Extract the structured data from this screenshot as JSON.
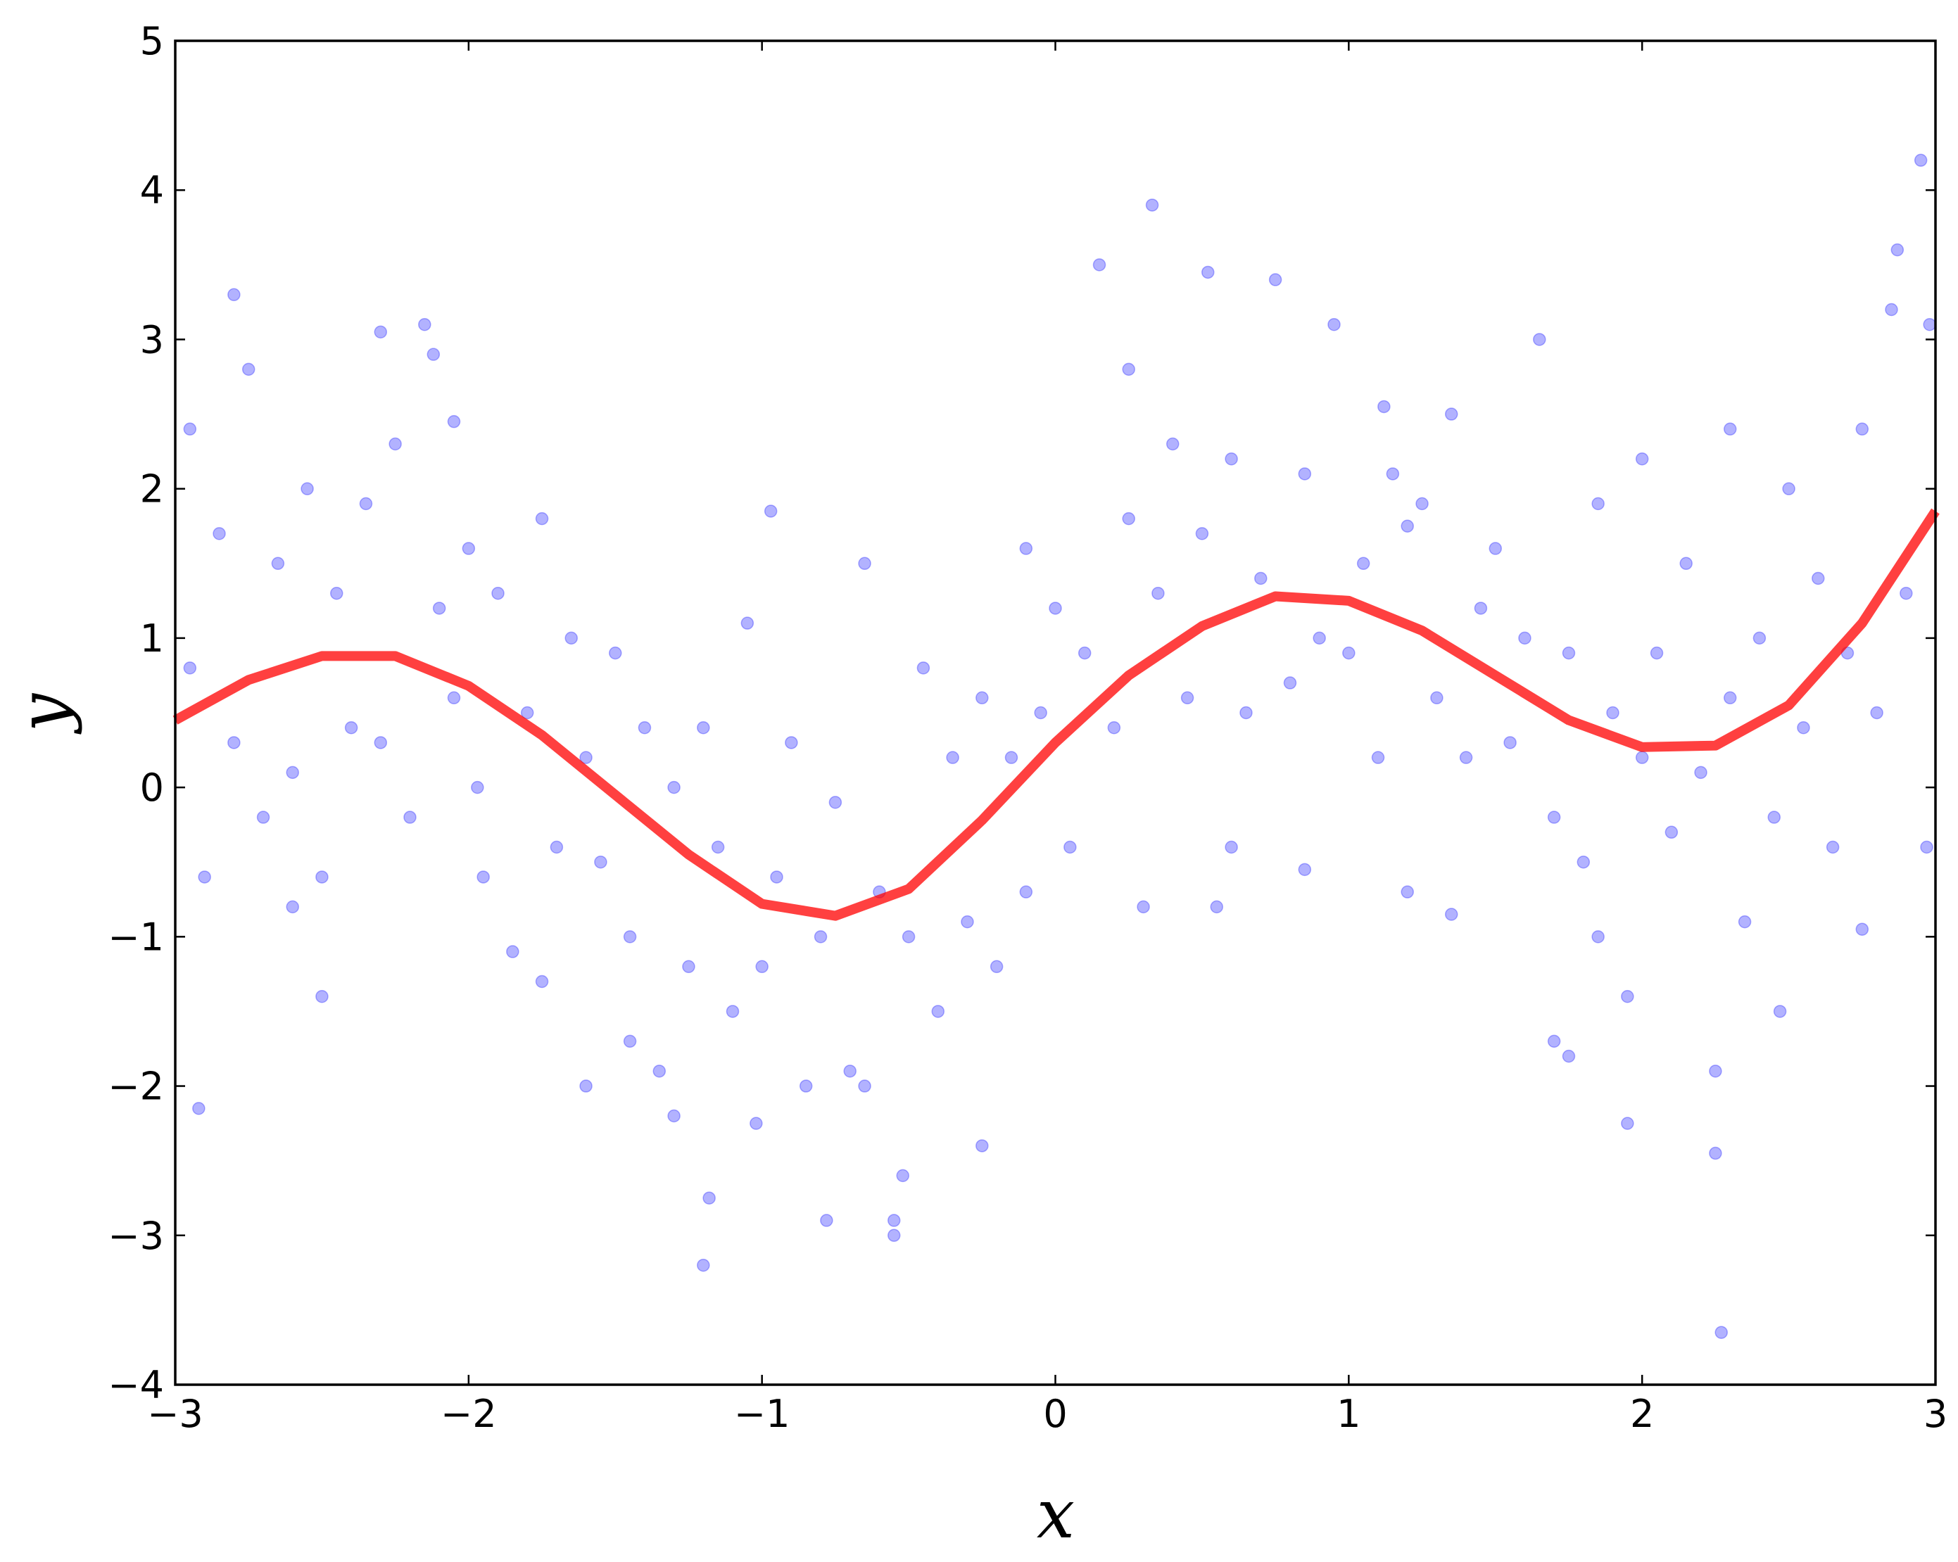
{
  "chart_data": {
    "type": "scatter",
    "xlabel": "x",
    "ylabel": "y",
    "xlim": [
      -3,
      3
    ],
    "ylim": [
      -4,
      5
    ],
    "xticks": [
      {
        "value": -3,
        "label": "−3"
      },
      {
        "value": -2,
        "label": "−2"
      },
      {
        "value": -1,
        "label": "−1"
      },
      0,
      1,
      2,
      3
    ],
    "yticks": [
      {
        "value": -4,
        "label": "−4"
      },
      {
        "value": -3,
        "label": "−3"
      },
      {
        "value": -2,
        "label": "−2"
      },
      {
        "value": -1,
        "label": "−1"
      },
      0,
      1,
      2,
      3,
      4,
      5
    ],
    "series": [
      {
        "type": "scatter",
        "color": "#0000ff",
        "x": [
          -2.95,
          -2.9,
          -2.85,
          -2.8,
          -2.75,
          -2.7,
          -2.65,
          -2.6,
          -2.55,
          -2.5,
          -2.45,
          -2.4,
          -2.35,
          -2.3,
          -2.25,
          -2.2,
          -2.15,
          -2.1,
          -2.05,
          -2.0,
          -1.95,
          -1.9,
          -1.85,
          -1.8,
          -1.75,
          -1.7,
          -1.65,
          -1.6,
          -1.55,
          -1.5,
          -1.45,
          -1.4,
          -1.35,
          -1.3,
          -1.25,
          -1.2,
          -1.15,
          -1.1,
          -1.05,
          -1.0,
          -0.95,
          -0.9,
          -0.85,
          -0.8,
          -0.75,
          -0.7,
          -0.65,
          -0.6,
          -0.55,
          -0.5,
          -0.45,
          -0.4,
          -0.35,
          -0.3,
          -0.25,
          -0.2,
          -0.15,
          -0.1,
          -0.05,
          0.0,
          0.05,
          0.1,
          0.15,
          0.2,
          0.25,
          0.3,
          0.35,
          0.4,
          0.45,
          0.5,
          0.55,
          0.6,
          0.65,
          0.7,
          0.75,
          0.8,
          0.85,
          0.9,
          0.95,
          1.0,
          1.05,
          1.1,
          1.15,
          1.2,
          1.25,
          1.3,
          1.35,
          1.4,
          1.45,
          1.5,
          1.55,
          1.6,
          1.65,
          1.7,
          1.75,
          1.8,
          1.85,
          1.9,
          1.95,
          2.0,
          2.05,
          2.1,
          2.15,
          2.2,
          2.25,
          2.3,
          2.35,
          2.4,
          2.45,
          2.5,
          2.55,
          2.6,
          2.65,
          2.7,
          2.75,
          2.8,
          2.85,
          2.9,
          2.95,
          -2.95,
          -2.92,
          -2.8,
          -2.6,
          -2.5,
          -2.3,
          -2.12,
          -2.05,
          -1.97,
          -1.75,
          -1.6,
          -1.45,
          -1.3,
          -1.2,
          -1.18,
          -1.02,
          -0.97,
          -0.78,
          -0.65,
          -0.55,
          -0.52,
          -0.25,
          -0.1,
          0.25,
          0.33,
          0.52,
          0.6,
          0.85,
          1.12,
          1.2,
          1.35,
          1.7,
          1.75,
          1.85,
          1.95,
          2.25,
          2.27,
          2.3,
          2.47,
          2.75,
          2.87,
          2.98,
          2.97,
          2.0
        ],
        "values": [
          0.8,
          -0.6,
          1.7,
          0.3,
          2.8,
          -0.2,
          1.5,
          0.1,
          2.0,
          -0.6,
          1.3,
          0.4,
          1.9,
          0.3,
          2.3,
          -0.2,
          3.1,
          1.2,
          0.6,
          1.6,
          -0.6,
          1.3,
          -1.1,
          0.5,
          1.8,
          -0.4,
          1.0,
          0.2,
          -0.5,
          0.9,
          -1.0,
          0.4,
          -1.9,
          0.0,
          -1.2,
          0.4,
          -0.4,
          -1.5,
          1.1,
          -1.2,
          -0.6,
          0.3,
          -2.0,
          -1.0,
          -0.1,
          -1.9,
          1.5,
          -0.7,
          -2.9,
          -1.0,
          0.8,
          -1.5,
          0.2,
          -0.9,
          0.6,
          -1.2,
          0.2,
          -0.7,
          0.5,
          1.2,
          -0.4,
          0.9,
          3.5,
          0.4,
          1.8,
          -0.8,
          1.3,
          2.3,
          0.6,
          1.7,
          -0.8,
          2.2,
          0.5,
          1.4,
          3.4,
          0.7,
          2.1,
          1.0,
          3.1,
          0.9,
          1.5,
          0.2,
          2.1,
          -0.7,
          1.9,
          0.6,
          2.5,
          0.2,
          1.2,
          1.6,
          0.3,
          1.0,
          3.0,
          -0.2,
          0.9,
          -0.5,
          1.9,
          0.5,
          -1.4,
          0.2,
          0.9,
          -0.3,
          1.5,
          0.1,
          -1.9,
          0.6,
          -0.9,
          1.0,
          -0.2,
          2.0,
          0.4,
          1.4,
          -0.4,
          0.9,
          2.4,
          0.5,
          3.2,
          1.3,
          4.2,
          2.4,
          -2.15,
          3.3,
          -0.8,
          -1.4,
          3.05,
          2.9,
          2.45,
          0.0,
          -1.3,
          -2.0,
          -1.7,
          -2.2,
          -3.2,
          -2.75,
          -2.25,
          1.85,
          -2.9,
          -2.0,
          -3.0,
          -2.6,
          -2.4,
          1.6,
          2.8,
          3.9,
          3.45,
          -0.4,
          -0.55,
          2.55,
          1.75,
          -0.85,
          -1.7,
          -1.8,
          -1.0,
          -2.25,
          -2.45,
          -3.65,
          2.4,
          -1.5,
          -0.95,
          3.6,
          3.1,
          -0.4,
          2.2
        ]
      },
      {
        "type": "line",
        "color": "#ff0000",
        "x": [
          -3,
          -2.75,
          -2.5,
          -2.25,
          -2,
          -1.75,
          -1.5,
          -1.25,
          -1,
          -0.75,
          -0.5,
          -0.25,
          0,
          0.25,
          0.5,
          0.75,
          1,
          1.25,
          1.5,
          1.75,
          2,
          2.25,
          2.5,
          2.75,
          3
        ],
        "values": [
          0.45,
          0.72,
          0.88,
          0.88,
          0.68,
          0.35,
          -0.05,
          -0.45,
          -0.78,
          -0.86,
          -0.68,
          -0.22,
          0.3,
          0.75,
          1.08,
          1.28,
          1.25,
          1.05,
          0.75,
          0.45,
          0.27,
          0.28,
          0.55,
          1.1,
          1.85
        ]
      }
    ]
  }
}
